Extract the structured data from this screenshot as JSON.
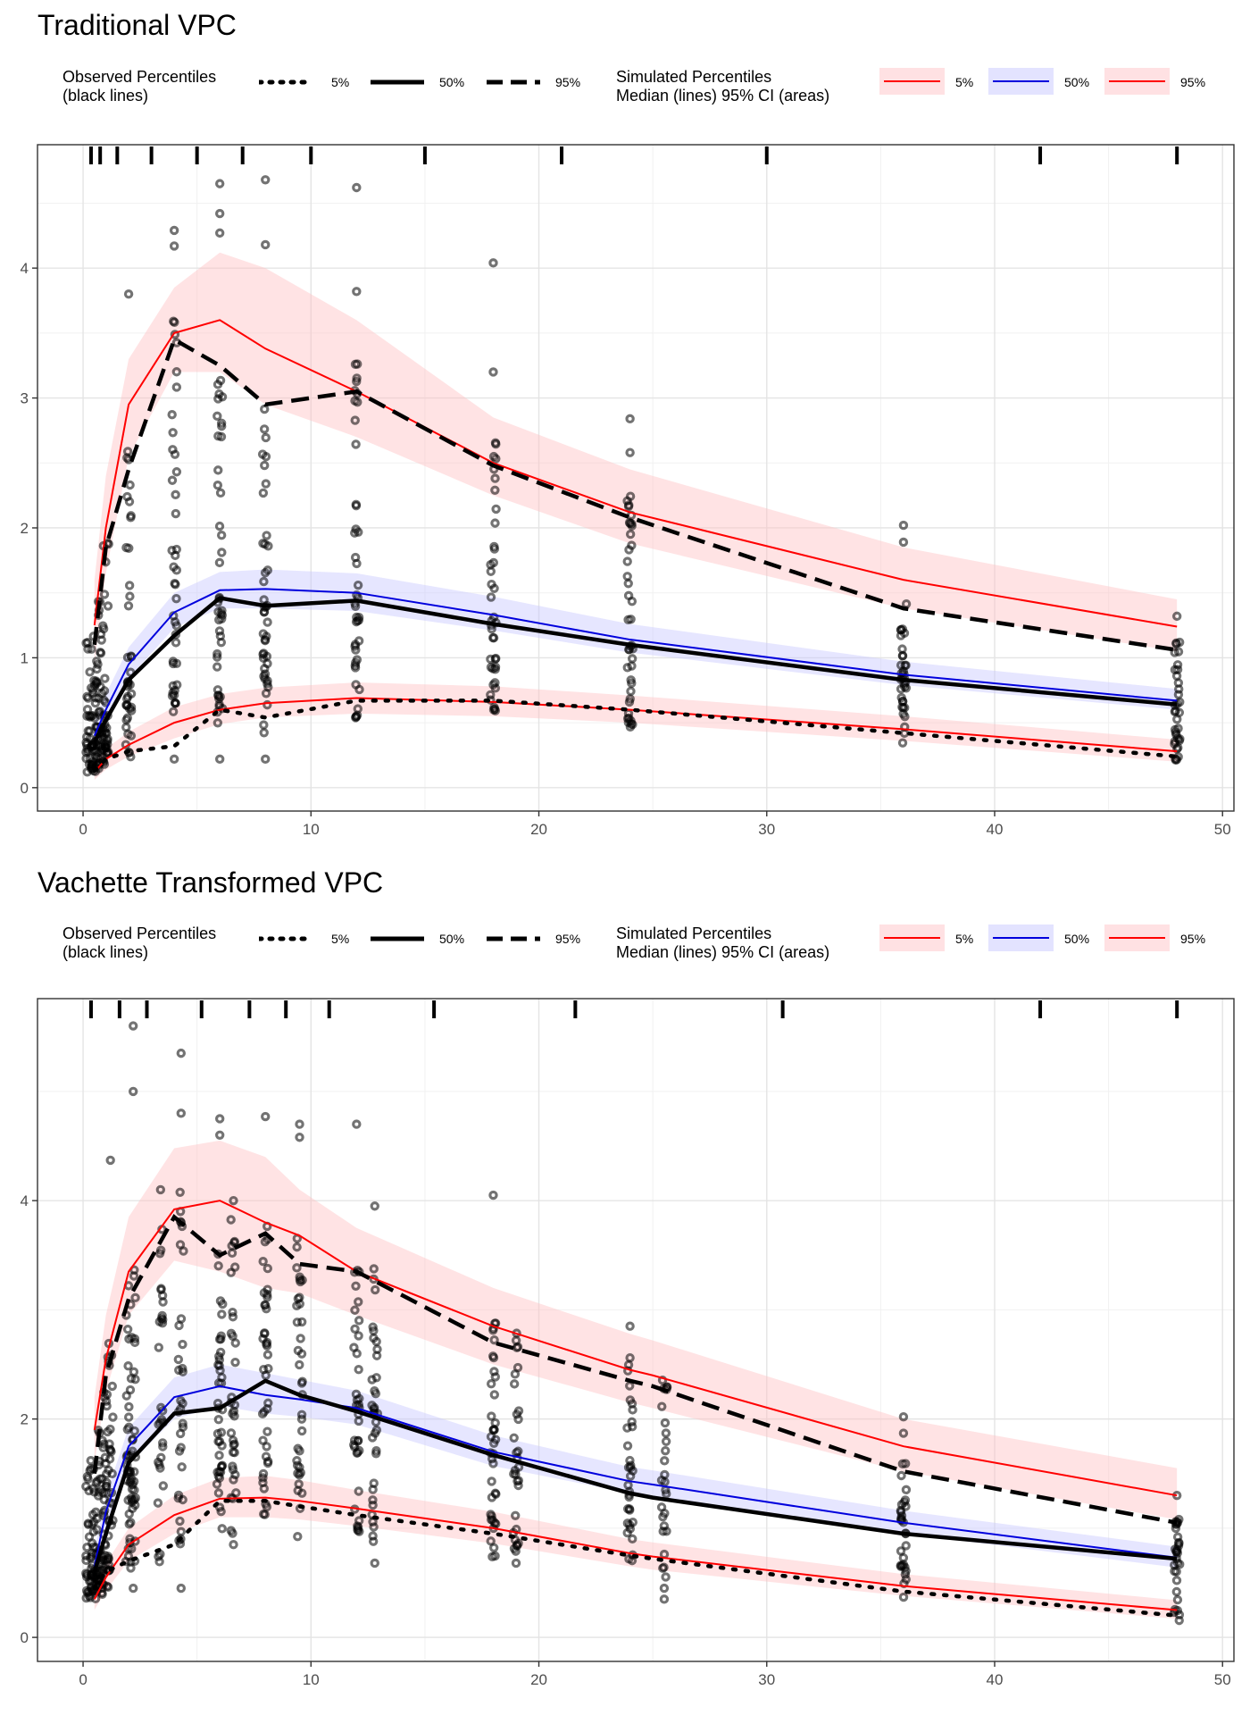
{
  "legend": {
    "observed_title_line1": "Observed Percentiles",
    "observed_title_line2": "(black lines)",
    "simulated_title_line1": "Simulated Percentiles",
    "simulated_title_line2": "Median (lines) 95% CI (areas)",
    "labels": [
      "5%",
      "50%",
      "95%"
    ],
    "colors": {
      "sim_5": "#ff0000",
      "sim_50": "#0000dd",
      "sim_95": "#ff0000",
      "band_red": "#ffc0c4",
      "band_blue": "#c8c8ff"
    }
  },
  "chart_data": [
    {
      "type": "line",
      "title": "Traditional VPC",
      "xlabel": "",
      "ylabel": "",
      "xlim": [
        -2,
        50.5
      ],
      "ylim": [
        -0.18,
        4.95
      ],
      "x_ticks": [
        0,
        10,
        20,
        30,
        40,
        50
      ],
      "y_ticks": [
        0,
        1,
        2,
        3,
        4
      ],
      "grid": true,
      "bin_marks": [
        0.35,
        0.75,
        1.5,
        3,
        5,
        7,
        10,
        15,
        21,
        30,
        42,
        48
      ],
      "x": [
        0.5,
        1,
        2,
        4,
        6,
        8,
        12,
        18,
        24,
        36,
        48
      ],
      "observed": {
        "p5": [
          0.13,
          0.22,
          0.28,
          0.32,
          0.6,
          0.54,
          0.67,
          0.67,
          0.6,
          0.42,
          0.24
        ],
        "p50": [
          0.35,
          0.52,
          0.83,
          1.17,
          1.46,
          1.4,
          1.44,
          1.26,
          1.1,
          0.83,
          0.64
        ],
        "p95": [
          1.1,
          1.85,
          2.45,
          3.45,
          3.25,
          2.95,
          3.05,
          2.48,
          2.08,
          1.38,
          1.06
        ]
      },
      "simulated": {
        "p5": [
          0.12,
          0.22,
          0.33,
          0.5,
          0.6,
          0.65,
          0.69,
          0.66,
          0.6,
          0.45,
          0.28
        ],
        "p50": [
          0.4,
          0.6,
          0.95,
          1.35,
          1.52,
          1.53,
          1.5,
          1.33,
          1.14,
          0.87,
          0.67
        ],
        "p95": [
          1.25,
          2.0,
          2.95,
          3.5,
          3.6,
          3.38,
          3.05,
          2.5,
          2.12,
          1.6,
          1.24
        ]
      },
      "ci": {
        "p5_lo": [
          0.06,
          0.14,
          0.24,
          0.38,
          0.49,
          0.54,
          0.57,
          0.55,
          0.5,
          0.36,
          0.2
        ],
        "p5_hi": [
          0.19,
          0.3,
          0.43,
          0.62,
          0.72,
          0.77,
          0.81,
          0.78,
          0.71,
          0.55,
          0.37
        ],
        "p50_lo": [
          0.3,
          0.5,
          0.84,
          1.23,
          1.38,
          1.38,
          1.36,
          1.21,
          1.04,
          0.79,
          0.6
        ],
        "p50_hi": [
          0.5,
          0.72,
          1.08,
          1.5,
          1.66,
          1.68,
          1.65,
          1.47,
          1.26,
          0.97,
          0.76
        ],
        "p95_lo": [
          0.95,
          1.65,
          2.55,
          3.2,
          3.2,
          2.95,
          2.7,
          2.25,
          1.88,
          1.38,
          1.05
        ],
        "p95_hi": [
          1.6,
          2.4,
          3.3,
          3.85,
          4.12,
          4.0,
          3.6,
          2.85,
          2.45,
          1.85,
          1.45
        ]
      },
      "scatter_x": [
        0.25,
        0.5,
        0.75,
        1,
        2,
        4,
        6,
        8,
        12,
        18,
        24,
        36,
        48
      ],
      "scatter_n": [
        30,
        36,
        36,
        36,
        40,
        40,
        42,
        42,
        42,
        40,
        40,
        34,
        34
      ],
      "scatter_outliers": [
        [
          6,
          4.65
        ],
        [
          6,
          4.42
        ],
        [
          6,
          4.27
        ],
        [
          8,
          4.68
        ],
        [
          8,
          4.18
        ],
        [
          4,
          4.29
        ],
        [
          4,
          4.17
        ],
        [
          12,
          4.62
        ],
        [
          18,
          4.04
        ],
        [
          12,
          3.82
        ],
        [
          2,
          3.8
        ],
        [
          36,
          2.02
        ],
        [
          36,
          1.89
        ],
        [
          48,
          1.32
        ],
        [
          24,
          2.84
        ],
        [
          24,
          2.58
        ],
        [
          18,
          3.2
        ],
        [
          8,
          0.22
        ],
        [
          6,
          0.22
        ],
        [
          4,
          0.22
        ]
      ]
    },
    {
      "type": "line",
      "title": "Vachette Transformed VPC",
      "xlabel": "",
      "ylabel": "",
      "xlim": [
        -2,
        50.5
      ],
      "ylim": [
        -0.22,
        5.85
      ],
      "x_ticks": [
        0,
        10,
        20,
        30,
        40,
        50
      ],
      "y_ticks": [
        0,
        2,
        4
      ],
      "grid": true,
      "bin_marks": [
        0.35,
        1.6,
        2.8,
        5.2,
        7.3,
        8.9,
        10.8,
        15.4,
        21.6,
        30.7,
        42,
        48
      ],
      "x": [
        0.5,
        1,
        2,
        4,
        6,
        8,
        9.5,
        12,
        18,
        24,
        25,
        36,
        48
      ],
      "observed": {
        "p5": [
          0.45,
          0.6,
          0.7,
          0.85,
          1.25,
          1.25,
          1.2,
          1.12,
          0.95,
          0.75,
          0.72,
          0.42,
          0.2
        ],
        "p50": [
          0.6,
          0.95,
          1.6,
          2.05,
          2.1,
          2.35,
          2.22,
          2.07,
          1.67,
          1.32,
          1.28,
          0.95,
          0.72
        ],
        "p95": [
          1.5,
          2.4,
          3.1,
          3.85,
          3.5,
          3.7,
          3.42,
          3.35,
          2.7,
          2.35,
          2.3,
          1.52,
          1.05
        ]
      },
      "simulated": {
        "p5": [
          0.35,
          0.55,
          0.85,
          1.12,
          1.27,
          1.28,
          1.25,
          1.18,
          1.0,
          0.77,
          0.74,
          0.47,
          0.25
        ],
        "p50": [
          0.65,
          1.15,
          1.75,
          2.2,
          2.3,
          2.22,
          2.18,
          2.1,
          1.7,
          1.43,
          1.4,
          1.05,
          0.73
        ],
        "p95": [
          1.9,
          2.55,
          3.35,
          3.92,
          4.0,
          3.8,
          3.68,
          3.35,
          2.85,
          2.45,
          2.4,
          1.75,
          1.3
        ]
      },
      "ci": {
        "p5_lo": [
          0.25,
          0.43,
          0.7,
          0.95,
          1.1,
          1.1,
          1.08,
          1.02,
          0.86,
          0.65,
          0.62,
          0.38,
          0.17
        ],
        "p5_hi": [
          0.48,
          0.68,
          1.0,
          1.3,
          1.46,
          1.48,
          1.44,
          1.35,
          1.15,
          0.9,
          0.87,
          0.58,
          0.34
        ],
        "p50_lo": [
          0.52,
          1.0,
          1.58,
          2.0,
          2.12,
          2.05,
          2.02,
          1.95,
          1.57,
          1.32,
          1.29,
          0.95,
          0.64
        ],
        "p50_hi": [
          0.8,
          1.3,
          1.92,
          2.38,
          2.5,
          2.42,
          2.36,
          2.26,
          1.85,
          1.56,
          1.53,
          1.16,
          0.83
        ],
        "p95_lo": [
          1.6,
          2.25,
          2.95,
          3.45,
          3.35,
          3.2,
          3.15,
          2.95,
          2.5,
          2.15,
          2.1,
          1.52,
          1.08
        ],
        "p95_hi": [
          2.2,
          2.95,
          3.85,
          4.48,
          4.55,
          4.4,
          4.1,
          3.75,
          3.2,
          2.78,
          2.72,
          2.0,
          1.55
        ]
      },
      "scatter_x": [
        0.25,
        0.5,
        0.75,
        1,
        1.2,
        2,
        2.2,
        3.4,
        4.3,
        6,
        6.6,
        8,
        9.5,
        12,
        12.8,
        18,
        19,
        24,
        25.5,
        36,
        48
      ],
      "scatter_n": [
        30,
        34,
        34,
        34,
        26,
        36,
        30,
        30,
        32,
        40,
        34,
        40,
        36,
        36,
        34,
        38,
        30,
        32,
        26,
        30,
        30
      ],
      "scatter_outliers": [
        [
          2.2,
          5.6
        ],
        [
          4.3,
          5.35
        ],
        [
          2.2,
          5.0
        ],
        [
          4.3,
          4.8
        ],
        [
          6,
          4.75
        ],
        [
          8,
          4.77
        ],
        [
          9.5,
          4.7
        ],
        [
          9.5,
          4.58
        ],
        [
          12,
          4.7
        ],
        [
          6,
          4.6
        ],
        [
          1.2,
          4.37
        ],
        [
          18,
          4.05
        ],
        [
          3.4,
          4.1
        ],
        [
          6.6,
          4.0
        ],
        [
          12.8,
          3.95
        ],
        [
          36,
          2.02
        ],
        [
          36,
          1.87
        ],
        [
          24,
          2.85
        ],
        [
          24,
          2.56
        ],
        [
          48,
          1.3
        ],
        [
          2.2,
          0.45
        ],
        [
          4.3,
          0.45
        ],
        [
          6.6,
          0.85
        ],
        [
          25.5,
          0.35
        ],
        [
          25.5,
          0.45
        ],
        [
          19,
          0.68
        ],
        [
          12.8,
          0.68
        ]
      ]
    }
  ]
}
